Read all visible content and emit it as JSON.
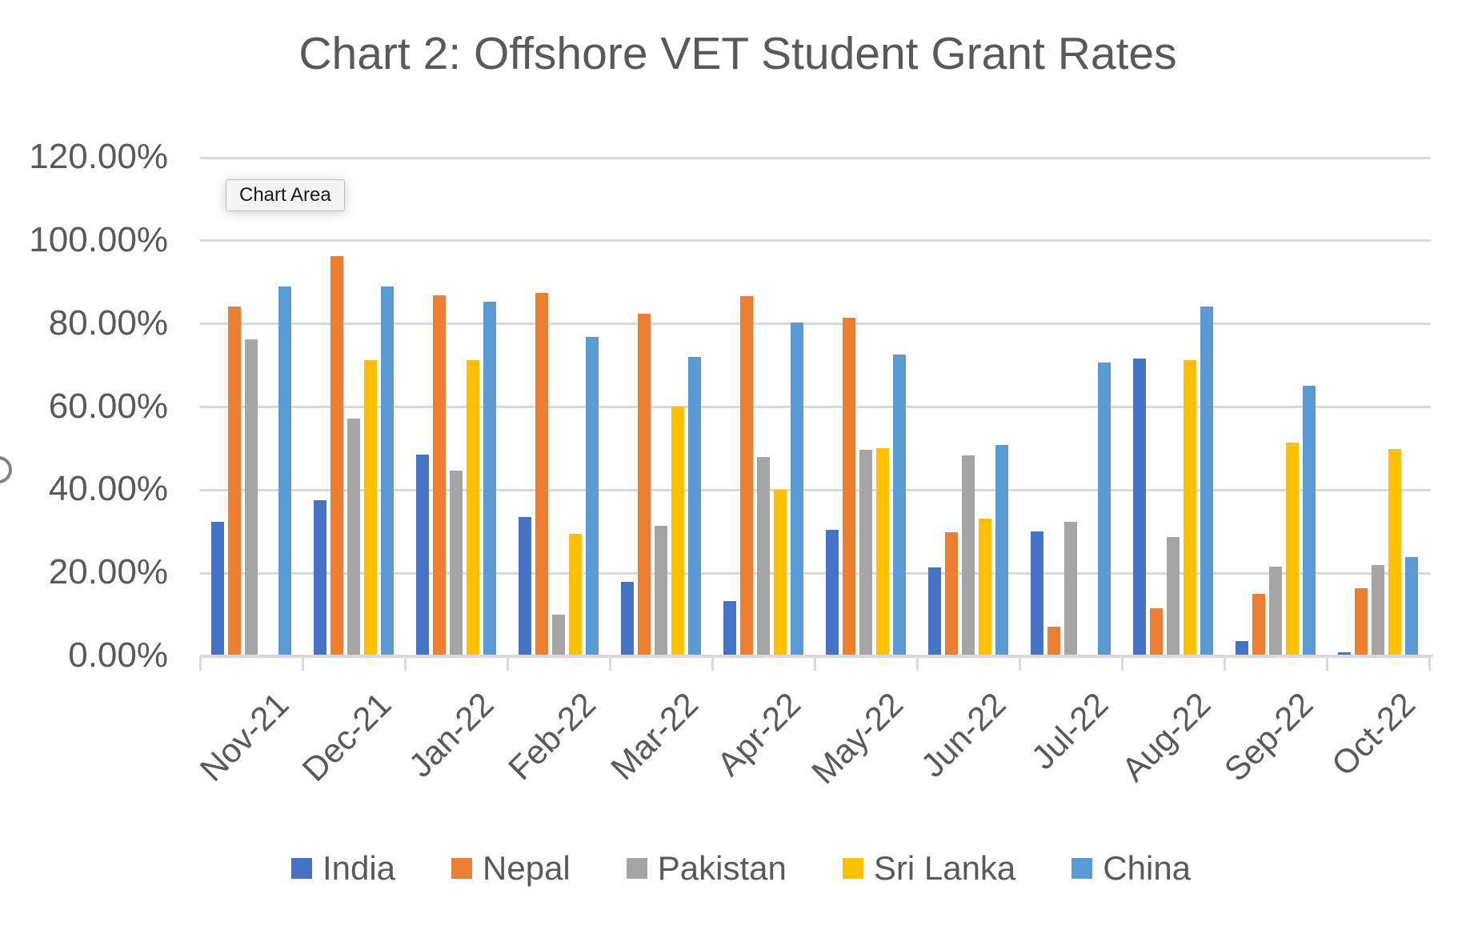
{
  "title": "Chart 2: Offshore VET Student Grant Rates",
  "chart_area_tooltip": "Chart Area",
  "chart_data": {
    "type": "bar",
    "title": "Chart 2: Offshore VET Student Grant Rates",
    "categories": [
      "Nov-21",
      "Dec-21",
      "Jan-22",
      "Feb-22",
      "Mar-22",
      "Apr-22",
      "May-22",
      "Jun-22",
      "Jul-22",
      "Aug-22",
      "Sep-22",
      "Oct-22"
    ],
    "series": [
      {
        "name": "India",
        "color": "#4472C4",
        "values": [
          32.4,
          37.5,
          48.6,
          33.6,
          17.9,
          13.2,
          30.5,
          21.4,
          30.0,
          71.6,
          3.6,
          0.9
        ]
      },
      {
        "name": "Nepal",
        "color": "#ED7D31",
        "values": [
          84.1,
          96.4,
          86.9,
          87.5,
          82.5,
          86.6,
          81.4,
          29.8,
          7.1,
          11.6,
          15.0,
          16.4
        ]
      },
      {
        "name": "Pakistan",
        "color": "#A5A5A5",
        "values": [
          76.3,
          57.3,
          44.6,
          10.0,
          31.4,
          48.0,
          49.7,
          48.4,
          32.4,
          28.7,
          21.6,
          21.9
        ]
      },
      {
        "name": "Sri Lanka",
        "color": "#FFC000",
        "values": [
          0,
          71.3,
          71.3,
          29.4,
          60.0,
          40.0,
          50.0,
          33.1,
          0,
          71.2,
          51.4,
          49.8
        ]
      },
      {
        "name": "China",
        "color": "#5B9BD5",
        "values": [
          88.9,
          88.9,
          85.4,
          76.8,
          72.0,
          80.4,
          72.7,
          50.9,
          70.7,
          84.1,
          65.2,
          23.9
        ]
      }
    ],
    "y_ticks": [
      "120.00%",
      "100.00%",
      "80.00%",
      "60.00%",
      "40.00%",
      "20.00%",
      "0.00%"
    ],
    "ylim": [
      0,
      120
    ],
    "grid": true,
    "legend_position": "bottom",
    "xlabel": "",
    "ylabel": ""
  },
  "colors": {
    "text": "#595959",
    "gridline": "#D9D9D9",
    "axis": "#D9D9D9",
    "background": "#FFFFFF",
    "tooltip_bg": "#F4F4F4",
    "tooltip_border": "#BFBFBF",
    "tooltip_text": "#1A1A1A"
  }
}
